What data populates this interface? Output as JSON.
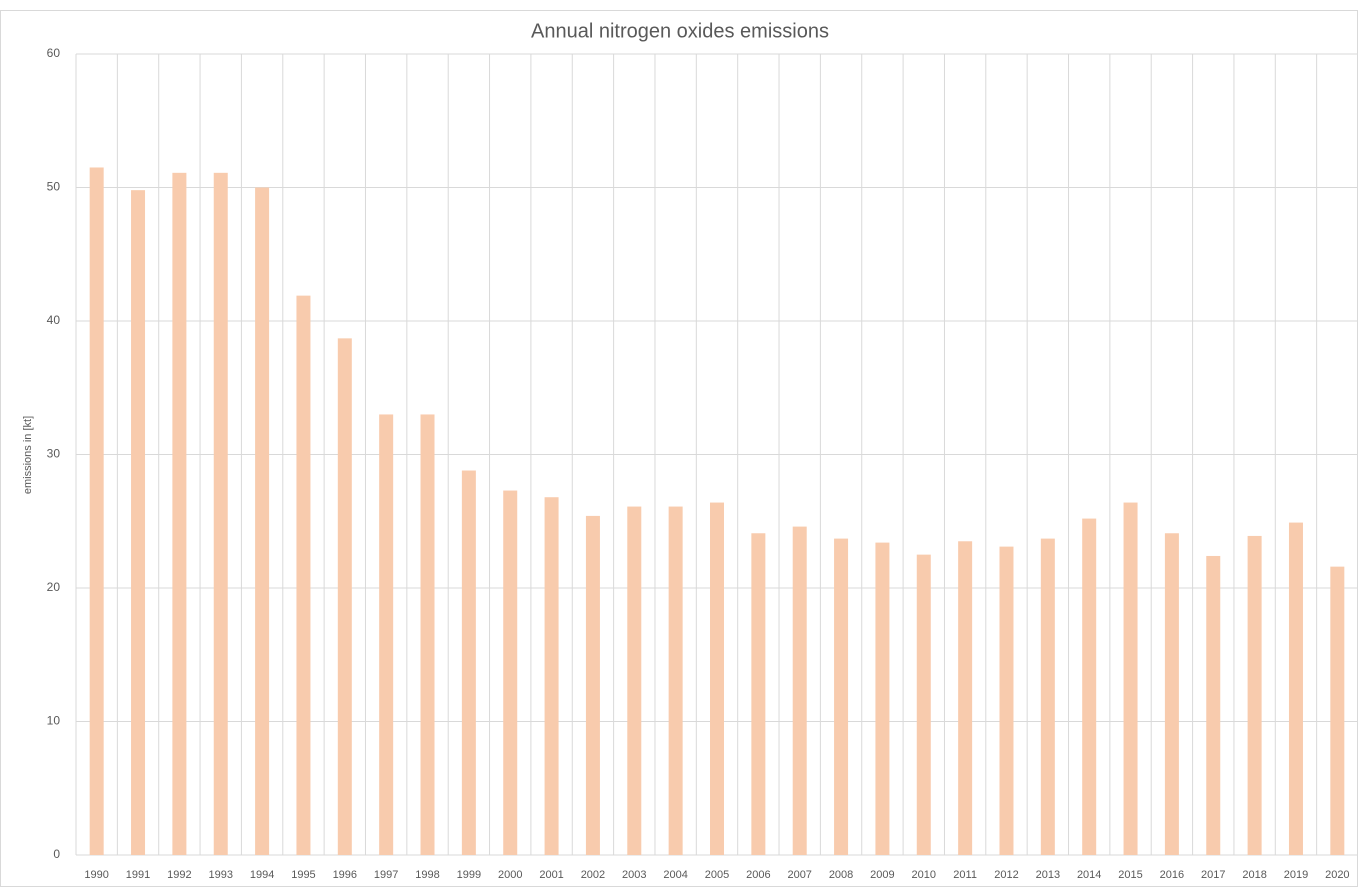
{
  "chart_data": {
    "type": "bar",
    "title": "Annual nitrogen oxides emissions",
    "y_label": "emissions in [kt]",
    "categories": [
      "1990",
      "1991",
      "1992",
      "1993",
      "1994",
      "1995",
      "1996",
      "1997",
      "1998",
      "1999",
      "2000",
      "2001",
      "2002",
      "2003",
      "2004",
      "2005",
      "2006",
      "2007",
      "2008",
      "2009",
      "2010",
      "2011",
      "2012",
      "2013",
      "2014",
      "2015",
      "2016",
      "2017",
      "2018",
      "2019",
      "2020"
    ],
    "values": [
      51.5,
      49.8,
      51.1,
      51.1,
      50.0,
      41.9,
      38.7,
      33.0,
      33.0,
      28.8,
      27.3,
      26.8,
      25.4,
      26.1,
      26.1,
      26.4,
      24.1,
      24.6,
      23.7,
      23.4,
      22.5,
      23.5,
      23.1,
      23.7,
      25.2,
      26.4,
      24.1,
      22.4,
      23.9,
      24.9,
      21.6
    ],
    "color": "#f8cbad",
    "ylim": [
      0,
      60
    ],
    "yticks": [
      0,
      10,
      20,
      30,
      40,
      50,
      60
    ],
    "grid": true
  }
}
